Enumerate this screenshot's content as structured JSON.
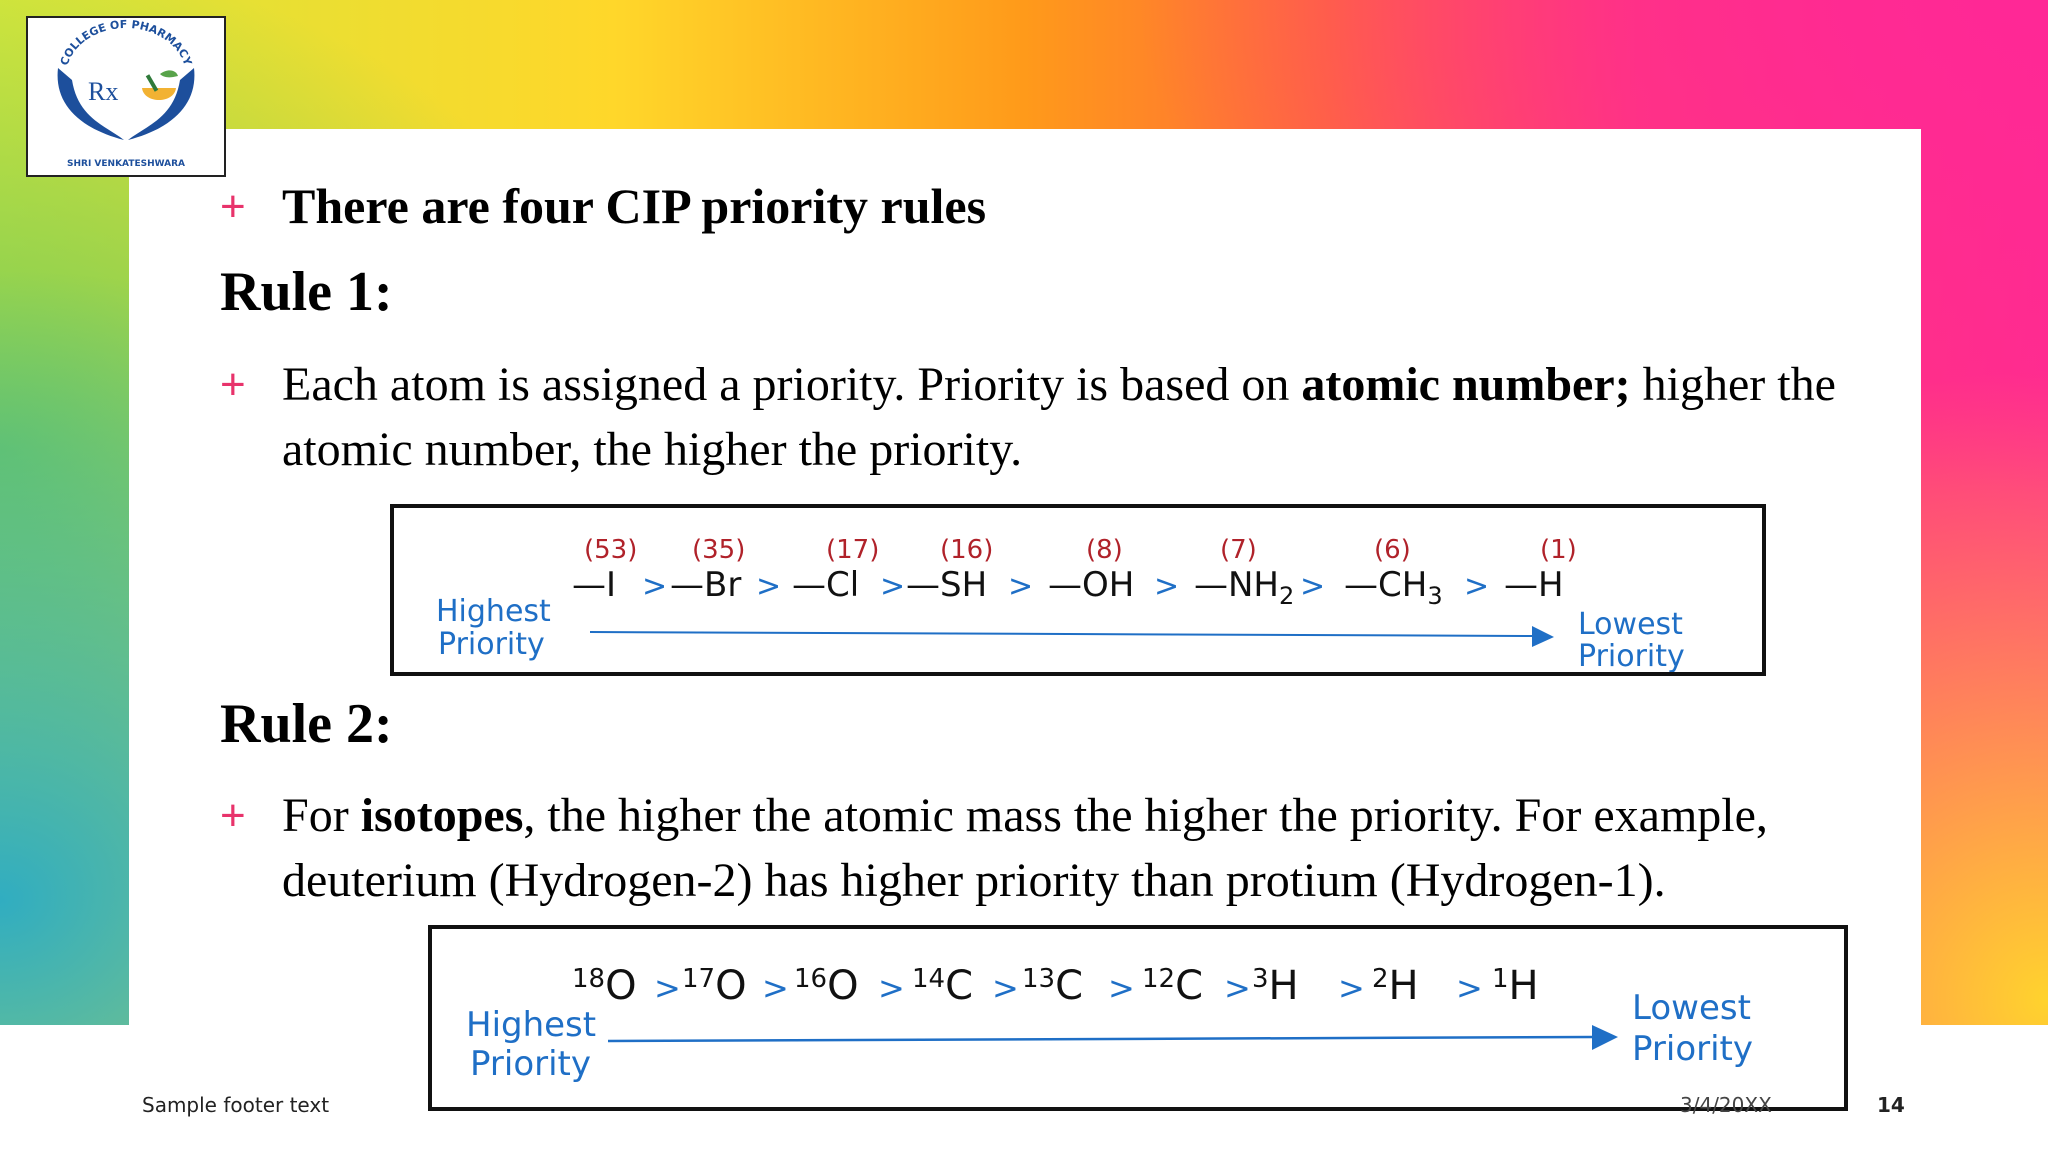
{
  "logo": {
    "top_text": "COLLEGE OF PHARMACY",
    "bottom_text": "SHRI VENKATESHWARA",
    "mark_text": "Rx"
  },
  "slide": {
    "bullet1": "There are four CIP priority rules",
    "rule1_heading": "Rule 1:",
    "rule1_text_a": "Each atom is assigned a priority. Priority is based on ",
    "rule1_text_bold": "atomic number;",
    "rule1_text_b": " higher the atomic number, the higher the priority.",
    "rule2_heading": "Rule 2:",
    "rule2_text_a": "For ",
    "rule2_text_bold": "isotopes",
    "rule2_text_b": ", the higher the atomic mass the higher the priority. For example, deuterium (Hydrogen-2) has higher priority than protium (Hydrogen-1)."
  },
  "figure1": {
    "highest_1": "Highest",
    "highest_2": "Priority",
    "lowest_1": "Lowest",
    "lowest_2": "Priority",
    "numbers": [
      "(53)",
      "(35)",
      "(17)",
      "(16)",
      "(8)",
      "(7)",
      "(6)",
      "(1)"
    ],
    "groups": [
      "—I",
      "—Br",
      "—Cl",
      "—SH",
      "—OH",
      "—NH",
      "—CH",
      "—H"
    ],
    "subscripts": [
      "",
      "",
      "",
      "",
      "",
      "2",
      "3",
      ""
    ],
    "separator": ">"
  },
  "figure2": {
    "highest_1": "Highest",
    "highest_2": "Priority",
    "lowest_1": "Lowest",
    "lowest_2": "Priority",
    "masses": [
      "18",
      "17",
      "16",
      "14",
      "13",
      "12",
      "3",
      "2",
      "1"
    ],
    "elements": [
      "O",
      "O",
      "O",
      "C",
      "C",
      "C",
      "H",
      "H",
      "H"
    ],
    "separator": ">"
  },
  "footer": {
    "text": "Sample footer text",
    "date": "3/4/20XX",
    "page": "14"
  },
  "colors": {
    "accent_plus": "#e8336b",
    "figure_blue": "#1f6fc6",
    "figure_red": "#b0222a",
    "logo_blue": "#1d4f9c"
  }
}
